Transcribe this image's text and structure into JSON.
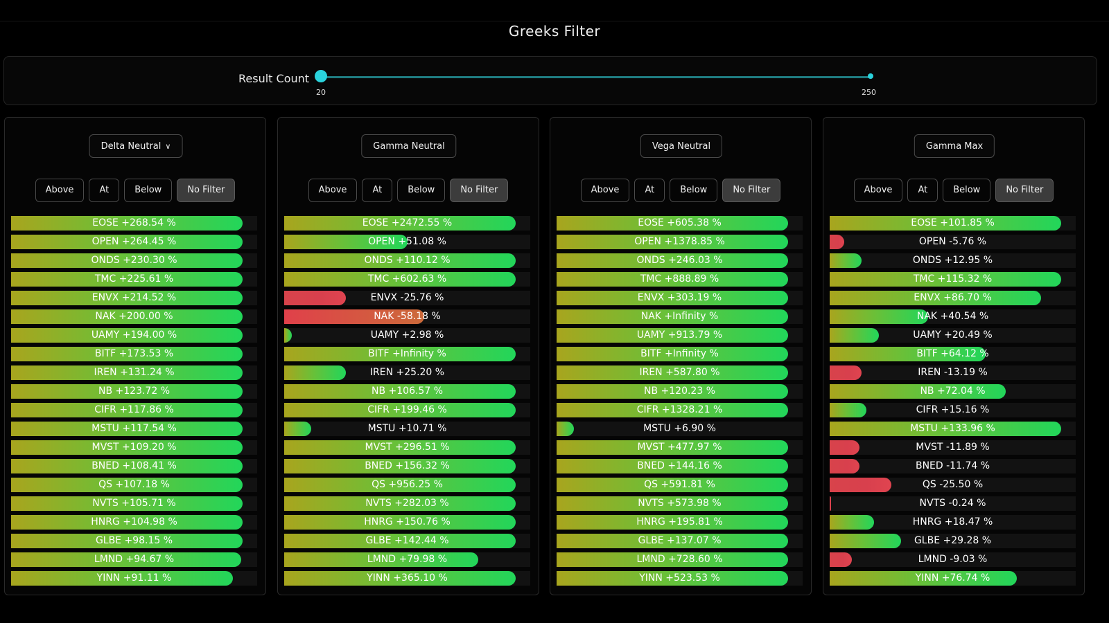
{
  "title": "Greeks Filter",
  "slider": {
    "label": "Result Count",
    "min": "20",
    "max": "250"
  },
  "filter_buttons": [
    "Above",
    "At",
    "Below",
    "No Filter"
  ],
  "colors": {
    "positive": "#22d65a",
    "negative": "#d8434b",
    "accent": "#2ad2dc"
  },
  "panels": [
    {
      "header": "Delta Neutral",
      "has_chevron": true,
      "active_filter": "No Filter",
      "rows": [
        {
          "text": "EOSE +268.54 %",
          "fill": 0.94,
          "sign": "pos"
        },
        {
          "text": "OPEN +264.45 %",
          "fill": 0.94,
          "sign": "pos"
        },
        {
          "text": "ONDS +230.30 %",
          "fill": 0.94,
          "sign": "pos"
        },
        {
          "text": "TMC +225.61 %",
          "fill": 0.94,
          "sign": "pos"
        },
        {
          "text": "ENVX +214.52 %",
          "fill": 0.94,
          "sign": "pos"
        },
        {
          "text": "NAK +200.00 %",
          "fill": 0.94,
          "sign": "pos"
        },
        {
          "text": "UAMY +194.00 %",
          "fill": 0.94,
          "sign": "pos"
        },
        {
          "text": "BITF +173.53 %",
          "fill": 0.94,
          "sign": "pos"
        },
        {
          "text": "IREN +131.24 %",
          "fill": 0.94,
          "sign": "pos"
        },
        {
          "text": "NB +123.72 %",
          "fill": 0.94,
          "sign": "pos"
        },
        {
          "text": "CIFR +117.86 %",
          "fill": 0.94,
          "sign": "pos"
        },
        {
          "text": "MSTU +117.54 %",
          "fill": 0.94,
          "sign": "pos"
        },
        {
          "text": "MVST +109.20 %",
          "fill": 0.94,
          "sign": "pos"
        },
        {
          "text": "BNED +108.41 %",
          "fill": 0.94,
          "sign": "pos"
        },
        {
          "text": "QS +107.18 %",
          "fill": 0.94,
          "sign": "pos"
        },
        {
          "text": "NVTS +105.71 %",
          "fill": 0.94,
          "sign": "pos"
        },
        {
          "text": "HNRG +104.98 %",
          "fill": 0.94,
          "sign": "pos"
        },
        {
          "text": "GLBE +98.15 %",
          "fill": 0.94,
          "sign": "pos"
        },
        {
          "text": "LMND +94.67 %",
          "fill": 0.935,
          "sign": "pos"
        },
        {
          "text": "YINN +91.11 %",
          "fill": 0.9,
          "sign": "pos"
        }
      ]
    },
    {
      "header": "Gamma Neutral",
      "has_chevron": false,
      "active_filter": "No Filter",
      "rows": [
        {
          "text": "EOSE +2472.55 %",
          "fill": 0.94,
          "sign": "pos"
        },
        {
          "text": "OPEN +51.08 %",
          "fill": 0.5,
          "sign": "pos"
        },
        {
          "text": "ONDS +110.12 %",
          "fill": 0.94,
          "sign": "pos"
        },
        {
          "text": "TMC +602.63 %",
          "fill": 0.94,
          "sign": "pos"
        },
        {
          "text": "ENVX -25.76 %",
          "fill": 0.25,
          "sign": "neg"
        },
        {
          "text": "NAK -58.18 %",
          "fill": 0.57,
          "sign": "neg2"
        },
        {
          "text": "UAMY +2.98 %",
          "fill": 0.03,
          "sign": "pos"
        },
        {
          "text": "BITF +Infinity %",
          "fill": 0.94,
          "sign": "pos"
        },
        {
          "text": "IREN +25.20 %",
          "fill": 0.25,
          "sign": "pos"
        },
        {
          "text": "NB +106.57 %",
          "fill": 0.94,
          "sign": "pos"
        },
        {
          "text": "CIFR +199.46 %",
          "fill": 0.94,
          "sign": "pos"
        },
        {
          "text": "MSTU +10.71 %",
          "fill": 0.11,
          "sign": "pos"
        },
        {
          "text": "MVST +296.51 %",
          "fill": 0.94,
          "sign": "pos"
        },
        {
          "text": "BNED +156.32 %",
          "fill": 0.94,
          "sign": "pos"
        },
        {
          "text": "QS +956.25 %",
          "fill": 0.94,
          "sign": "pos"
        },
        {
          "text": "NVTS +282.03 %",
          "fill": 0.94,
          "sign": "pos"
        },
        {
          "text": "HNRG +150.76 %",
          "fill": 0.94,
          "sign": "pos"
        },
        {
          "text": "GLBE +142.44 %",
          "fill": 0.94,
          "sign": "pos"
        },
        {
          "text": "LMND +79.98 %",
          "fill": 0.79,
          "sign": "pos"
        },
        {
          "text": "YINN +365.10 %",
          "fill": 0.94,
          "sign": "pos"
        }
      ]
    },
    {
      "header": "Vega Neutral",
      "has_chevron": false,
      "active_filter": "No Filter",
      "rows": [
        {
          "text": "EOSE +605.38 %",
          "fill": 0.94,
          "sign": "pos"
        },
        {
          "text": "OPEN +1378.85 %",
          "fill": 0.94,
          "sign": "pos"
        },
        {
          "text": "ONDS +246.03 %",
          "fill": 0.94,
          "sign": "pos"
        },
        {
          "text": "TMC +888.89 %",
          "fill": 0.94,
          "sign": "pos"
        },
        {
          "text": "ENVX +303.19 %",
          "fill": 0.94,
          "sign": "pos"
        },
        {
          "text": "NAK +Infinity %",
          "fill": 0.94,
          "sign": "pos"
        },
        {
          "text": "UAMY +913.79 %",
          "fill": 0.94,
          "sign": "pos"
        },
        {
          "text": "BITF +Infinity %",
          "fill": 0.94,
          "sign": "pos"
        },
        {
          "text": "IREN +587.80 %",
          "fill": 0.94,
          "sign": "pos"
        },
        {
          "text": "NB +120.23 %",
          "fill": 0.94,
          "sign": "pos"
        },
        {
          "text": "CIFR +1328.21 %",
          "fill": 0.94,
          "sign": "pos"
        },
        {
          "text": "MSTU +6.90 %",
          "fill": 0.07,
          "sign": "pos"
        },
        {
          "text": "MVST +477.97 %",
          "fill": 0.94,
          "sign": "pos"
        },
        {
          "text": "BNED +144.16 %",
          "fill": 0.94,
          "sign": "pos"
        },
        {
          "text": "QS +591.81 %",
          "fill": 0.94,
          "sign": "pos"
        },
        {
          "text": "NVTS +573.98 %",
          "fill": 0.94,
          "sign": "pos"
        },
        {
          "text": "HNRG +195.81 %",
          "fill": 0.94,
          "sign": "pos"
        },
        {
          "text": "GLBE +137.07 %",
          "fill": 0.94,
          "sign": "pos"
        },
        {
          "text": "LMND +728.60 %",
          "fill": 0.94,
          "sign": "pos"
        },
        {
          "text": "YINN +523.53 %",
          "fill": 0.94,
          "sign": "pos"
        }
      ]
    },
    {
      "header": "Gamma Max",
      "has_chevron": false,
      "active_filter": "No Filter",
      "rows": [
        {
          "text": "EOSE +101.85 %",
          "fill": 0.94,
          "sign": "pos"
        },
        {
          "text": "OPEN -5.76 %",
          "fill": 0.06,
          "sign": "neg"
        },
        {
          "text": "ONDS +12.95 %",
          "fill": 0.13,
          "sign": "pos"
        },
        {
          "text": "TMC +115.32 %",
          "fill": 0.94,
          "sign": "pos"
        },
        {
          "text": "ENVX +86.70 %",
          "fill": 0.86,
          "sign": "pos"
        },
        {
          "text": "NAK +40.54 %",
          "fill": 0.4,
          "sign": "pos"
        },
        {
          "text": "UAMY +20.49 %",
          "fill": 0.2,
          "sign": "pos"
        },
        {
          "text": "BITF +64.12 %",
          "fill": 0.635,
          "sign": "pos"
        },
        {
          "text": "IREN -13.19 %",
          "fill": 0.13,
          "sign": "neg"
        },
        {
          "text": "NB +72.04 %",
          "fill": 0.715,
          "sign": "pos"
        },
        {
          "text": "CIFR +15.16 %",
          "fill": 0.15,
          "sign": "pos"
        },
        {
          "text": "MSTU +133.96 %",
          "fill": 0.94,
          "sign": "pos"
        },
        {
          "text": "MVST -11.89 %",
          "fill": 0.12,
          "sign": "neg"
        },
        {
          "text": "BNED -11.74 %",
          "fill": 0.12,
          "sign": "neg"
        },
        {
          "text": "QS -25.50 %",
          "fill": 0.25,
          "sign": "neg"
        },
        {
          "text": "NVTS -0.24 %",
          "fill": 0.003,
          "sign": "neg"
        },
        {
          "text": "HNRG +18.47 %",
          "fill": 0.18,
          "sign": "pos"
        },
        {
          "text": "GLBE +29.28 %",
          "fill": 0.29,
          "sign": "pos"
        },
        {
          "text": "LMND -9.03 %",
          "fill": 0.09,
          "sign": "neg"
        },
        {
          "text": "YINN +76.74 %",
          "fill": 0.76,
          "sign": "pos"
        }
      ]
    }
  ]
}
